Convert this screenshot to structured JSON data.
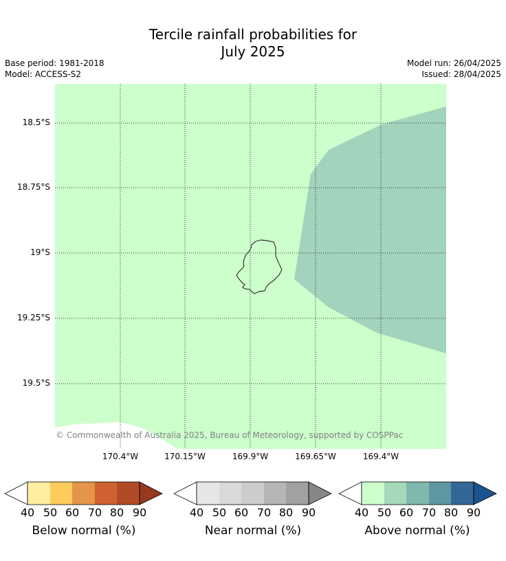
{
  "title_line1": "Tercile rainfall probabilities for",
  "title_line2": "July 2025",
  "meta": {
    "base_period": "Base period: 1981-2018",
    "model": "Model: ACCESS-S2",
    "model_run": "Model run: 26/04/2025",
    "issued": "Issued: 28/04/2025"
  },
  "map": {
    "lat_labels": [
      "18.5°S",
      "18.75°S",
      "19°S",
      "19.25°S",
      "19.5°S"
    ],
    "lon_labels": [
      "170.4°W",
      "170.15°W",
      "169.9°W",
      "169.65°W",
      "169.4°W"
    ],
    "copyright": "© Commonwealth of Australia 2025, Bureau of Meteorology, supported by COSPPac",
    "regions": [
      {
        "category": "Above normal",
        "range": "40-50",
        "color": "#ccffcc"
      },
      {
        "category": "Above normal",
        "range": "50-60",
        "color": "#a1d3bd"
      }
    ],
    "land_outline_color": "#000000"
  },
  "colorbars": [
    {
      "label": "Below normal (%)",
      "ticks": [
        "40",
        "50",
        "60",
        "70",
        "80",
        "90"
      ],
      "colors": [
        "#ffeda0",
        "#fecc5c",
        "#e3954a",
        "#cf6130",
        "#b24a27",
        "#96391e"
      ]
    },
    {
      "label": "Near normal (%)",
      "ticks": [
        "40",
        "50",
        "60",
        "70",
        "80",
        "90"
      ],
      "colors": [
        "#e6e6e6",
        "#d9d9d9",
        "#cccccc",
        "#b5b5b5",
        "#a1a1a1",
        "#878787"
      ]
    },
    {
      "label": "Above normal (%)",
      "ticks": [
        "40",
        "50",
        "60",
        "70",
        "80",
        "90"
      ],
      "colors": [
        "#ccffcc",
        "#a6d9b9",
        "#81b8ad",
        "#5e96a2",
        "#336699",
        "#1a5490"
      ]
    }
  ]
}
